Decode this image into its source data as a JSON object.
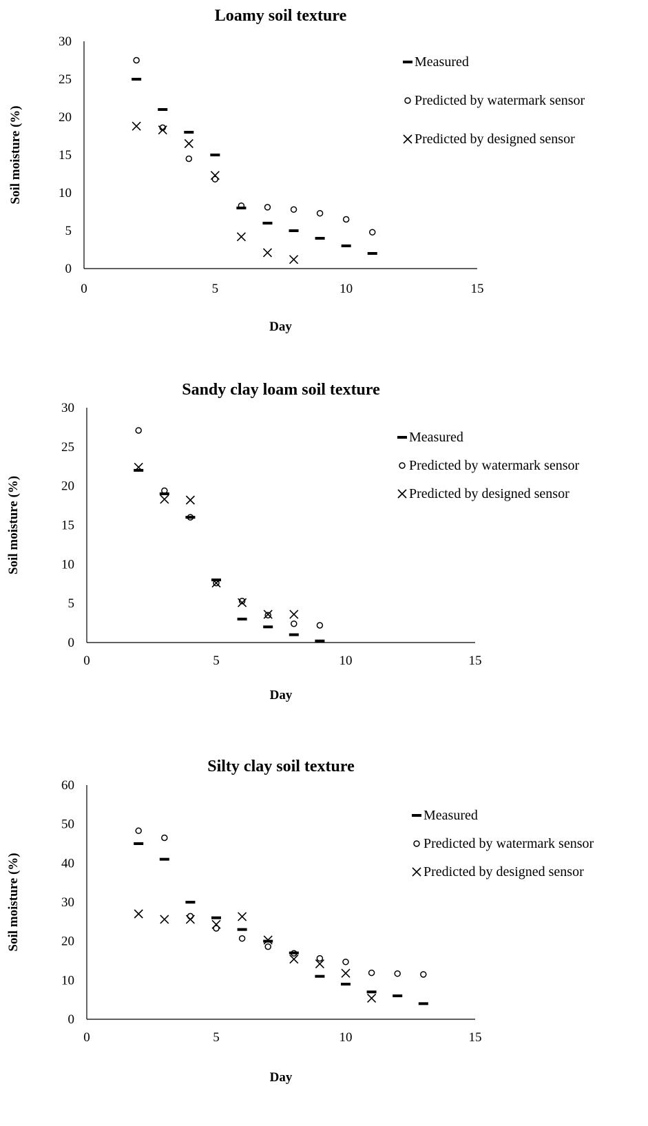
{
  "chart_data": [
    {
      "type": "scatter",
      "title": "Loamy soil texture",
      "xlabel": "Day",
      "ylabel": "Soil moisture (%)",
      "xlim": [
        0,
        15
      ],
      "ylim": [
        0,
        30
      ],
      "xticks": [
        "0",
        "5",
        "10",
        "15"
      ],
      "yticks": [
        "0",
        "5",
        "10",
        "15",
        "20",
        "25",
        "30"
      ],
      "grid": false,
      "legend_position": "top-right",
      "series": [
        {
          "name": "Measured",
          "marker": "dash",
          "x": [
            2,
            3,
            4,
            5,
            6,
            7,
            8,
            9,
            10,
            11
          ],
          "y": [
            25,
            21,
            18,
            15,
            8,
            6,
            5,
            4,
            3,
            2
          ]
        },
        {
          "name": "Predicted by watermark sensor",
          "marker": "circle",
          "x": [
            2,
            3,
            4,
            5,
            6,
            7,
            8,
            9,
            10,
            11
          ],
          "y": [
            27.5,
            18.6,
            14.5,
            11.8,
            8.3,
            8.1,
            7.8,
            7.3,
            6.5,
            4.8
          ]
        },
        {
          "name": "Predicted by designed sensor",
          "marker": "x",
          "x": [
            2,
            3,
            4,
            5,
            6,
            7,
            8
          ],
          "y": [
            18.8,
            18.3,
            16.5,
            12.3,
            4.2,
            2.1,
            1.2
          ]
        }
      ]
    },
    {
      "type": "scatter",
      "title": "Sandy clay loam soil texture",
      "xlabel": "Day",
      "ylabel": "Soil moisture (%)",
      "xlim": [
        0,
        15
      ],
      "ylim": [
        0,
        30
      ],
      "xticks": [
        "0",
        "5",
        "10",
        "15"
      ],
      "yticks": [
        "0",
        "5",
        "10",
        "15",
        "20",
        "25",
        "30"
      ],
      "grid": false,
      "legend_position": "top-right",
      "series": [
        {
          "name": "Measured",
          "marker": "dash",
          "x": [
            2,
            3,
            4,
            5,
            6,
            7,
            8,
            9
          ],
          "y": [
            22,
            19,
            16,
            8,
            3,
            2,
            1,
            0.2
          ]
        },
        {
          "name": "Predicted by watermark sensor",
          "marker": "circle",
          "x": [
            2,
            3,
            4,
            5,
            6,
            7,
            8,
            9
          ],
          "y": [
            27.1,
            19.4,
            16,
            7.6,
            5.3,
            3.5,
            2.4,
            2.2
          ]
        },
        {
          "name": "Predicted by designed sensor",
          "marker": "x",
          "x": [
            2,
            3,
            4,
            5,
            6,
            7,
            8
          ],
          "y": [
            22.4,
            18.3,
            18.2,
            7.6,
            5.1,
            3.6,
            3.6
          ]
        }
      ]
    },
    {
      "type": "scatter",
      "title": "Silty clay  soil texture",
      "xlabel": "Day",
      "ylabel": "Soil moisture (%)",
      "xlim": [
        0,
        15
      ],
      "ylim": [
        0,
        60
      ],
      "xticks": [
        "0",
        "5",
        "10",
        "15"
      ],
      "yticks": [
        "0",
        "10",
        "20",
        "30",
        "40",
        "50",
        "60"
      ],
      "grid": false,
      "legend_position": "top-right",
      "series": [
        {
          "name": "Measured",
          "marker": "dash",
          "x": [
            2,
            3,
            4,
            5,
            6,
            7,
            8,
            9,
            10,
            11,
            12,
            13
          ],
          "y": [
            45,
            41,
            30,
            26,
            23,
            20,
            17,
            11,
            9,
            7,
            6,
            4
          ]
        },
        {
          "name": "Predicted by watermark sensor",
          "marker": "circle",
          "x": [
            2,
            3,
            4,
            5,
            6,
            7,
            8,
            9,
            10,
            11,
            12,
            13
          ],
          "y": [
            48.3,
            46.5,
            26.4,
            23.3,
            20.7,
            18.6,
            16.9,
            15.6,
            14.7,
            11.9,
            11.7,
            11.5
          ]
        },
        {
          "name": "Predicted by designed sensor",
          "marker": "x",
          "x": [
            2,
            3,
            4,
            5,
            6,
            7,
            8,
            9,
            10,
            11
          ],
          "y": [
            27,
            25.6,
            25.6,
            24.3,
            26.3,
            20.3,
            15.4,
            14.2,
            11.8,
            5.4
          ]
        }
      ]
    }
  ]
}
